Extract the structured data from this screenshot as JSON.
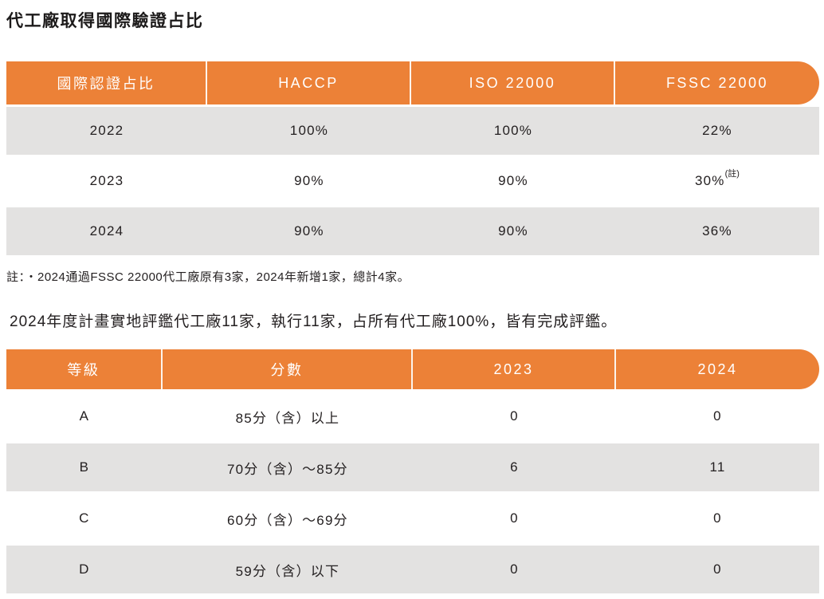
{
  "page_title": "代工廠取得國際驗證占比",
  "colors": {
    "accent_orange": "#ec8137",
    "row_gray": "#e3e2e1",
    "header_text": "#ffffff",
    "body_text": "#242021"
  },
  "table1": {
    "headers": [
      "國際認證占比",
      "HACCP",
      "ISO 22000",
      "FSSC 22000"
    ],
    "rows": [
      {
        "cells": [
          "2022",
          "100%",
          "100%",
          "22%"
        ],
        "sup": ""
      },
      {
        "cells": [
          "2023",
          "90%",
          "90%",
          "30%"
        ],
        "sup": "(註)"
      },
      {
        "cells": [
          "2024",
          "90%",
          "90%",
          "36%"
        ],
        "sup": ""
      }
    ],
    "note": "註：‧2024通過FSSC 22000代工廠原有3家，2024年新增1家，總計4家。"
  },
  "paragraph": "2024年度計畫實地評鑑代工廠11家，執行11家，占所有代工廠100%，皆有完成評鑑。",
  "table2": {
    "headers": [
      "等級",
      "分數",
      "2023",
      "2024"
    ],
    "rows": [
      {
        "cells": [
          "A",
          "85分（含）以上",
          "0",
          "0"
        ]
      },
      {
        "cells": [
          "B",
          "70分（含）～85分",
          "6",
          "11"
        ]
      },
      {
        "cells": [
          "C",
          "60分（含）～69分",
          "0",
          "0"
        ]
      },
      {
        "cells": [
          "D",
          "59分（含）以下",
          "0",
          "0"
        ]
      }
    ]
  }
}
